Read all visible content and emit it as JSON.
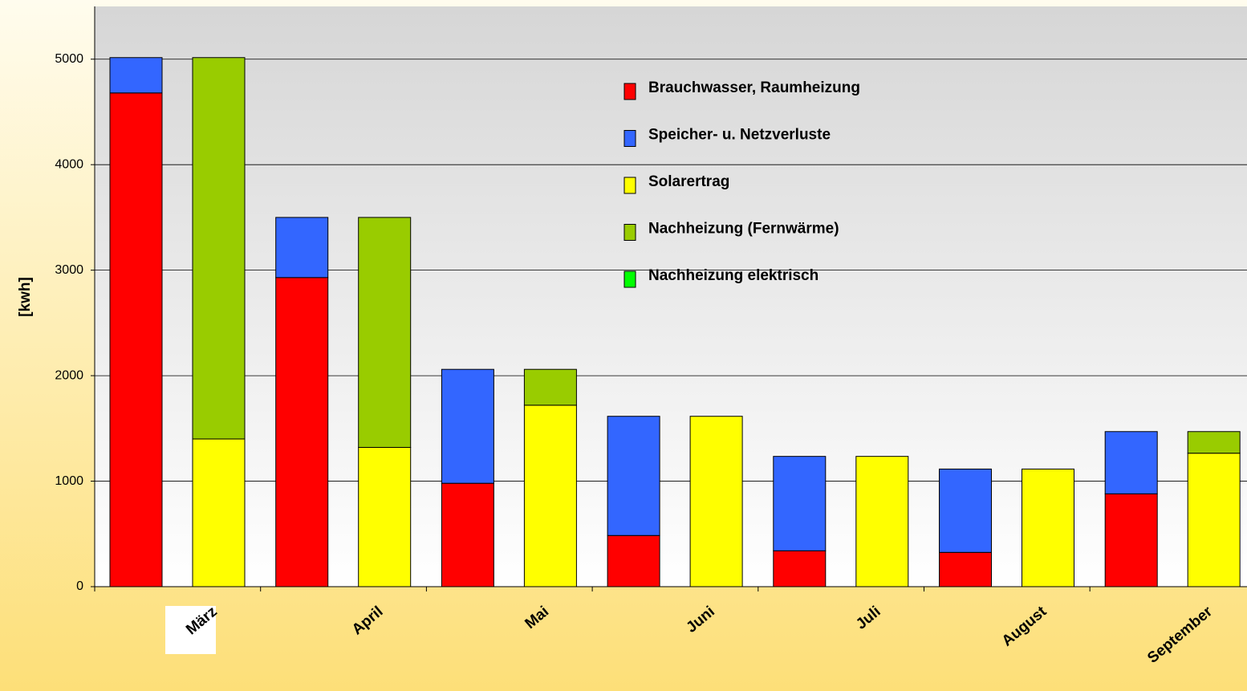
{
  "chart_data": {
    "type": "bar",
    "y_label": "[kwh]",
    "categories": [
      "März",
      "April",
      "Mai",
      "Juni",
      "Juli",
      "August",
      "September"
    ],
    "stacks": [
      [
        {
          "name": "Brauchwasser, Raumheizung",
          "color": "#ff0000",
          "values": [
            4680,
            2930,
            980,
            485,
            340,
            325,
            880
          ]
        },
        {
          "name": "Speicher- u. Netzverluste",
          "color": "#3366ff",
          "values": [
            335,
            570,
            1080,
            1130,
            895,
            790,
            590
          ]
        }
      ],
      [
        {
          "name": "Solarertrag",
          "color": "#ffff00",
          "values": [
            1400,
            1320,
            1720,
            1615,
            1235,
            1115,
            1265
          ]
        },
        {
          "name": "Nachheizung (Fernwärme)",
          "color": "#99cc00",
          "values": [
            3615,
            2180,
            340,
            0,
            0,
            0,
            205
          ]
        },
        {
          "name": "Nachheizung elektrisch",
          "color": "#00ff00",
          "values": [
            0,
            0,
            0,
            0,
            0,
            0,
            0
          ]
        }
      ]
    ],
    "ylim": [
      0,
      5500
    ],
    "yticks": [
      0,
      1000,
      2000,
      3000,
      4000,
      5000
    ],
    "grid": true
  }
}
